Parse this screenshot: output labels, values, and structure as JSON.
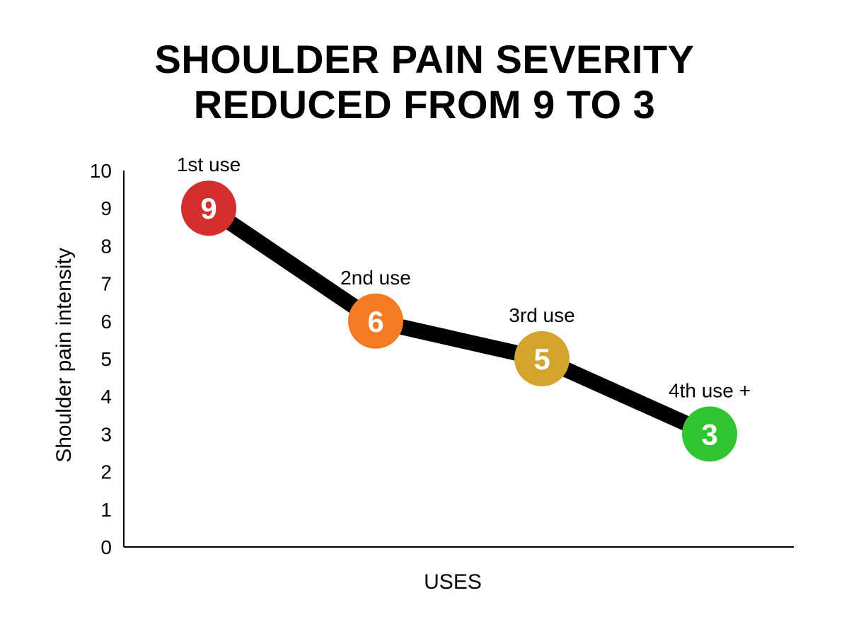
{
  "chart_data": {
    "type": "line",
    "title_lines": [
      "SHOULDER PAIN SEVERITY",
      "REDUCED FROM 9 TO 3"
    ],
    "xlabel": "USES",
    "ylabel": "Shoulder pain intensity",
    "ylim": [
      0,
      10
    ],
    "yticks": [
      0,
      1,
      2,
      3,
      4,
      5,
      6,
      7,
      8,
      9,
      10
    ],
    "grid": false,
    "categories": [
      "1st use",
      "2nd use",
      "3rd use",
      "4th use +"
    ],
    "values": [
      9,
      6,
      5,
      3
    ],
    "point_labels": [
      "9",
      "6",
      "5",
      "3"
    ],
    "point_colors": [
      "#d32f2f",
      "#f47a24",
      "#d4a52e",
      "#33c433"
    ],
    "line_color": "#000000"
  }
}
